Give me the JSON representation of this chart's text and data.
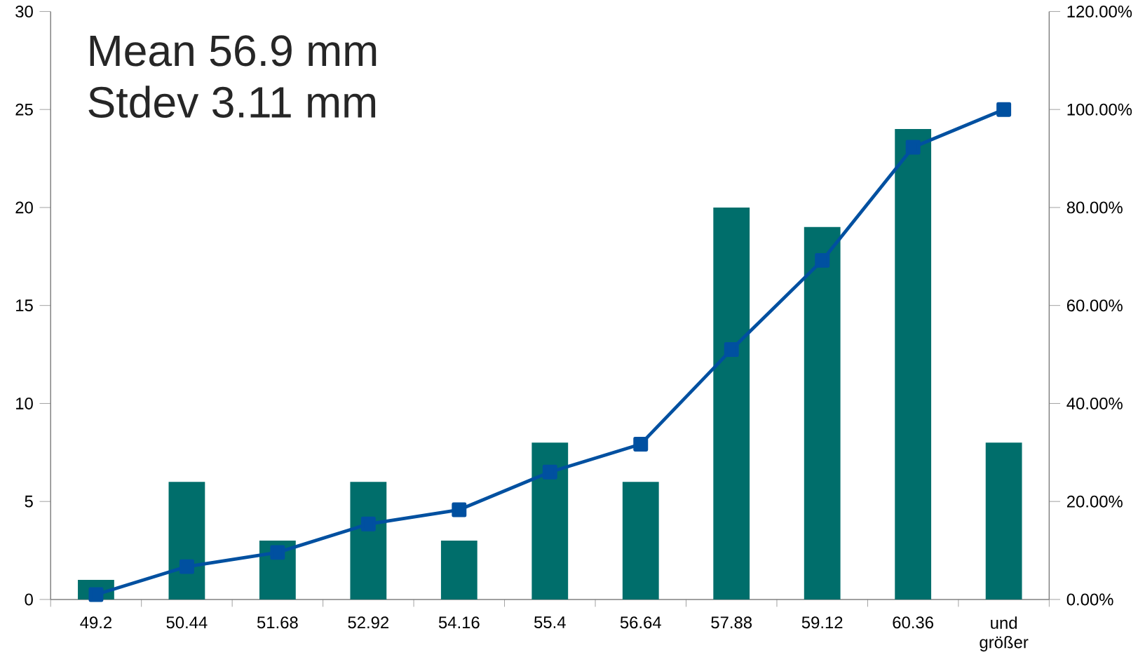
{
  "chart_data": {
    "type": "bar",
    "categories": [
      "49.2",
      "50.44",
      "51.68",
      "52.92",
      "54.16",
      "55.4",
      "56.64",
      "57.88",
      "59.12",
      "60.36",
      "und größer"
    ],
    "series": [
      {
        "color": "#006e6b",
        "values": [
          1,
          6,
          3,
          6,
          3,
          8,
          6,
          20,
          19,
          24,
          8
        ]
      },
      {
        "type": "line",
        "axis": "y2",
        "color": "#0050a0",
        "values": [
          1,
          6.7,
          9.6,
          15.4,
          18.3,
          26,
          31.7,
          51,
          69.2,
          92.3,
          100
        ]
      }
    ],
    "ylim": [
      0,
      30
    ],
    "yticks": [
      0,
      5,
      10,
      15,
      20,
      25,
      30
    ],
    "y2lim": [
      0,
      120
    ],
    "y2ticks": [
      {
        "value": 0,
        "label": "0.00%"
      },
      {
        "value": 20,
        "label": "20.00%"
      },
      {
        "value": 40,
        "label": "40.00%"
      },
      {
        "value": 60,
        "label": "60.00%"
      },
      {
        "value": 80,
        "label": "80.00%"
      },
      {
        "value": 100,
        "label": "100.00%"
      },
      {
        "value": 120,
        "label": "120.00%"
      }
    ],
    "marker": "square",
    "grid": false,
    "annotations": [
      "Mean 56.9 mm",
      "Stdev 3.11 mm"
    ]
  }
}
